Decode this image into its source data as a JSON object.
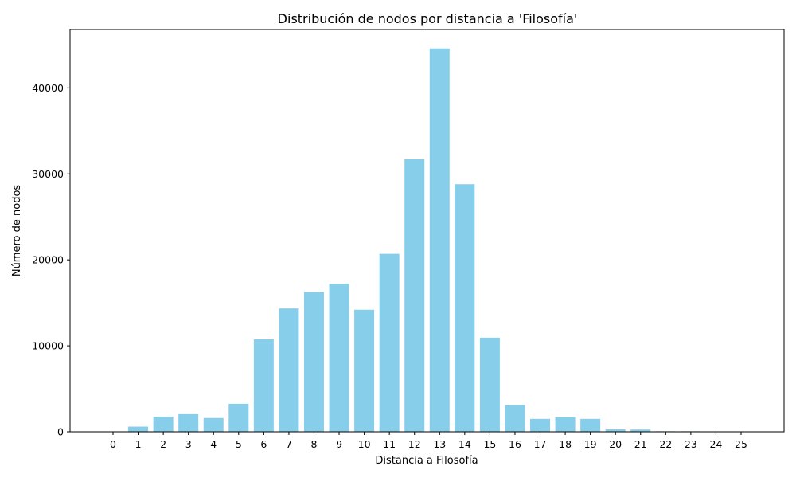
{
  "chart_data": {
    "type": "bar",
    "title": "Distribución de nodos por distancia a 'Filosofía'",
    "xlabel": "Distancia a Filosofía",
    "ylabel": "Número de nodos",
    "categories": [
      "0",
      "1",
      "2",
      "3",
      "4",
      "5",
      "6",
      "7",
      "8",
      "9",
      "10",
      "11",
      "12",
      "13",
      "14",
      "15",
      "16",
      "17",
      "18",
      "19",
      "20",
      "21",
      "22",
      "23",
      "24",
      "25"
    ],
    "values": [
      1,
      600,
      1750,
      2050,
      1600,
      3250,
      10750,
      14350,
      16250,
      17200,
      14200,
      20700,
      31700,
      44600,
      28800,
      10950,
      3150,
      1500,
      1700,
      1500,
      280,
      260,
      60,
      60,
      20,
      5
    ],
    "ylim": [
      0,
      46800
    ],
    "yticks": [
      0,
      10000,
      20000,
      30000,
      40000
    ],
    "bar_color": "#87ceeb",
    "grid": false,
    "legend": "none"
  }
}
